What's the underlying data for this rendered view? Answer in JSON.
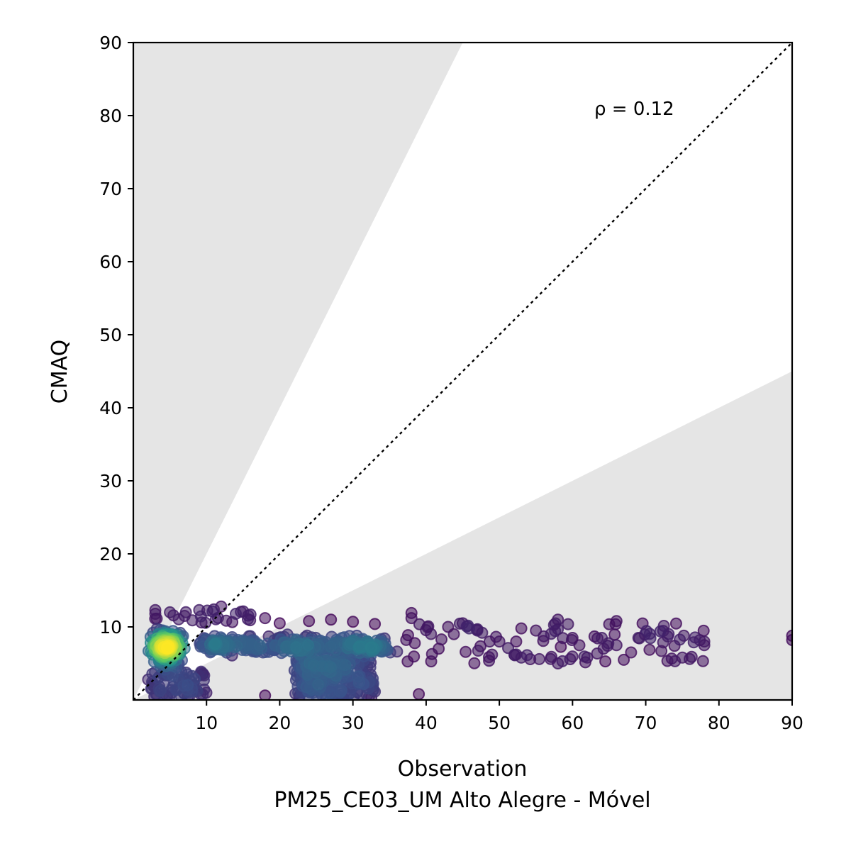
{
  "chart_data": {
    "type": "scatter",
    "title": "",
    "xlabel": "Observation",
    "xlabel_sub": "PM25_CE03_UM Alto Alegre - Móvel",
    "ylabel": "CMAQ",
    "xlim": [
      0,
      90
    ],
    "ylim": [
      0,
      90
    ],
    "x_ticks": [
      10,
      20,
      30,
      40,
      50,
      60,
      70,
      80,
      90
    ],
    "y_ticks": [
      10,
      20,
      30,
      40,
      50,
      60,
      70,
      80,
      90
    ],
    "annotation": "ρ = 0.12",
    "reference_line": "1:1 dotted",
    "shaded_regions": "outside factor-of-2 band (y > 2x and y < 0.5x)",
    "colormap": [
      "#440154",
      "#3b528b",
      "#21918c",
      "#5ec962",
      "#fde725"
    ],
    "point_alpha": 0.55,
    "point_groups": [
      {
        "count": 260,
        "x": [
          2,
          9
        ],
        "y": [
          3,
          11.5
        ],
        "density": "high"
      },
      {
        "count": 300,
        "x": [
          9,
          35
        ],
        "y": [
          5.5,
          9.5
        ],
        "density": "medium"
      },
      {
        "count": 240,
        "x": [
          22,
          33
        ],
        "y": [
          0.3,
          6
        ],
        "density": "low"
      },
      {
        "count": 80,
        "x": [
          2,
          10
        ],
        "y": [
          0.3,
          4
        ],
        "density": "low"
      },
      {
        "count": 90,
        "x": [
          35,
          78
        ],
        "y": [
          5,
          10.5
        ],
        "density": "low"
      },
      {
        "count": 20,
        "x": [
          2,
          16
        ],
        "y": [
          10.5,
          12.5
        ],
        "density": "low"
      }
    ],
    "points": [
      [
        3,
        12.3
      ],
      [
        3,
        11.8
      ],
      [
        5,
        12
      ],
      [
        7,
        11.5
      ],
      [
        9,
        12.3
      ],
      [
        11,
        12.4
      ],
      [
        12,
        12.8
      ],
      [
        14,
        11.8
      ],
      [
        16,
        11.7
      ],
      [
        18,
        11.2
      ],
      [
        18,
        0.6
      ],
      [
        20,
        10.5
      ],
      [
        24,
        10.8
      ],
      [
        27,
        11
      ],
      [
        30,
        10.7
      ],
      [
        33,
        10.4
      ],
      [
        38,
        11.9
      ],
      [
        38,
        11.2
      ],
      [
        39,
        0.8
      ],
      [
        43,
        10
      ],
      [
        45,
        10.5
      ],
      [
        47,
        9.5
      ],
      [
        49,
        6.2
      ],
      [
        50,
        8
      ],
      [
        53,
        9.8
      ],
      [
        53,
        5.8
      ],
      [
        55,
        9.5
      ],
      [
        57,
        5.6
      ],
      [
        58,
        11
      ],
      [
        58,
        9.7
      ],
      [
        58,
        5
      ],
      [
        60,
        8.5
      ],
      [
        62,
        5.8
      ],
      [
        63,
        8.7
      ],
      [
        64,
        8.5
      ],
      [
        66,
        10.8
      ],
      [
        66,
        7.5
      ],
      [
        67,
        5.5
      ],
      [
        68,
        6.5
      ],
      [
        69,
        8.5
      ],
      [
        72,
        9.4
      ],
      [
        73,
        8.7
      ],
      [
        74,
        5.3
      ],
      [
        75,
        5.8
      ],
      [
        76,
        5.6
      ],
      [
        78,
        8
      ],
      [
        78,
        7.5
      ],
      [
        90,
        8.8
      ],
      [
        90,
        8.2
      ]
    ]
  }
}
